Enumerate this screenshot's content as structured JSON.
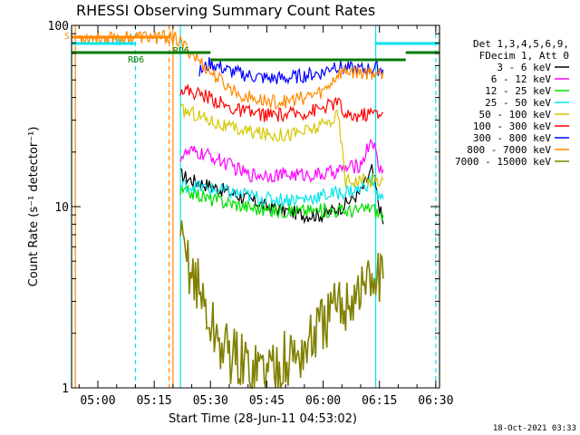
{
  "chart_data": {
    "type": "line",
    "title": "RHESSI Observing Summary Count Rates",
    "xlabel": "Start Time (28-Jun-11 04:53:02)",
    "ylabel": "Count Rate (s⁻¹ detector⁻¹)",
    "yscale": "log",
    "ylim": [
      1,
      100
    ],
    "xlim": [
      "04:53",
      "06:31"
    ],
    "x_ticks": [
      "05:00",
      "05:15",
      "05:30",
      "05:45",
      "06:00",
      "06:15",
      "06:30"
    ],
    "y_ticks": [
      "1",
      "10",
      "100"
    ],
    "legend_header": [
      "Det 1,3,4,5,6,9,",
      "FDecim 1, Att 0"
    ],
    "legend_position": "top-right",
    "date_stamp": "18-Oct-2021 03:33",
    "annotations": [
      {
        "label": "S",
        "color": "#ff8800"
      },
      {
        "label": "N",
        "color": "#00e5ee"
      },
      {
        "label": "RD6",
        "color": "#007a00"
      },
      {
        "label": "RD6",
        "color": "#007a00"
      }
    ],
    "series": [
      {
        "name": "3 - 6 keV",
        "color": "#000000",
        "points": [
          [
            "05:22",
            15
          ],
          [
            "05:25",
            14
          ],
          [
            "05:30",
            13
          ],
          [
            "05:35",
            12
          ],
          [
            "05:40",
            11
          ],
          [
            "05:45",
            10
          ],
          [
            "05:50",
            9.5
          ],
          [
            "05:55",
            9
          ],
          [
            "06:00",
            9
          ],
          [
            "06:05",
            10
          ],
          [
            "06:10",
            12
          ],
          [
            "06:13",
            16
          ],
          [
            "06:15",
            10
          ],
          [
            "06:16",
            8
          ]
        ]
      },
      {
        "name": "6 - 12 keV",
        "color": "#ff00ff",
        "points": [
          [
            "05:22",
            19
          ],
          [
            "05:25",
            20
          ],
          [
            "05:30",
            19
          ],
          [
            "05:35",
            17
          ],
          [
            "05:40",
            15
          ],
          [
            "05:45",
            15
          ],
          [
            "05:50",
            15
          ],
          [
            "05:55",
            15
          ],
          [
            "06:00",
            15
          ],
          [
            "06:05",
            16
          ],
          [
            "06:10",
            17
          ],
          [
            "06:13",
            24
          ],
          [
            "06:15",
            16
          ],
          [
            "06:16",
            16
          ]
        ]
      },
      {
        "name": "12 - 25 keV",
        "color": "#00dd00",
        "points": [
          [
            "05:22",
            12
          ],
          [
            "05:25",
            12
          ],
          [
            "05:30",
            11
          ],
          [
            "05:35",
            10.5
          ],
          [
            "05:40",
            10
          ],
          [
            "05:45",
            9.5
          ],
          [
            "05:50",
            9.5
          ],
          [
            "05:55",
            9.5
          ],
          [
            "06:00",
            9.5
          ],
          [
            "06:05",
            9.5
          ],
          [
            "06:10",
            9.5
          ],
          [
            "06:13",
            10
          ],
          [
            "06:15",
            9
          ],
          [
            "06:16",
            9
          ]
        ]
      },
      {
        "name": "25 - 50 keV",
        "color": "#00e5ee",
        "points": [
          [
            "05:22",
            13
          ],
          [
            "05:25",
            13
          ],
          [
            "05:30",
            12.5
          ],
          [
            "05:35",
            12
          ],
          [
            "05:40",
            11.5
          ],
          [
            "05:45",
            11
          ],
          [
            "05:50",
            11
          ],
          [
            "05:55",
            11
          ],
          [
            "06:00",
            11.5
          ],
          [
            "06:05",
            12
          ],
          [
            "06:10",
            12.5
          ],
          [
            "06:13",
            14
          ],
          [
            "06:15",
            11
          ],
          [
            "06:16",
            11
          ]
        ]
      },
      {
        "name": "50 - 100 keV",
        "color": "#d4c800",
        "points": [
          [
            "05:22",
            34
          ],
          [
            "05:25",
            33
          ],
          [
            "05:30",
            30
          ],
          [
            "05:35",
            27
          ],
          [
            "05:40",
            26
          ],
          [
            "05:45",
            25
          ],
          [
            "05:50",
            25
          ],
          [
            "05:55",
            26
          ],
          [
            "06:00",
            28
          ],
          [
            "06:04",
            32
          ],
          [
            "06:06",
            14
          ],
          [
            "06:10",
            14
          ],
          [
            "06:16",
            14
          ]
        ]
      },
      {
        "name": "100 - 300 keV",
        "color": "#ff0000",
        "points": [
          [
            "05:22",
            45
          ],
          [
            "05:25",
            43
          ],
          [
            "05:30",
            40
          ],
          [
            "05:35",
            35
          ],
          [
            "05:40",
            33
          ],
          [
            "05:45",
            32
          ],
          [
            "05:50",
            32
          ],
          [
            "05:55",
            33
          ],
          [
            "06:00",
            35
          ],
          [
            "06:04",
            38
          ],
          [
            "06:06",
            31
          ],
          [
            "06:10",
            32
          ],
          [
            "06:14",
            33
          ],
          [
            "06:16",
            33
          ]
        ]
      },
      {
        "name": "300 - 800 keV",
        "color": "#0000ff",
        "points": [
          [
            "05:27",
            55
          ],
          [
            "05:30",
            62
          ],
          [
            "05:35",
            56
          ],
          [
            "05:40",
            53
          ],
          [
            "05:45",
            51
          ],
          [
            "05:50",
            51
          ],
          [
            "05:55",
            53
          ],
          [
            "06:00",
            55
          ],
          [
            "06:03",
            61
          ],
          [
            "06:05",
            58
          ],
          [
            "06:10",
            57
          ],
          [
            "06:14",
            58
          ],
          [
            "06:16",
            57
          ]
        ]
      },
      {
        "name": "800 - 7000 keV",
        "color": "#ff8800",
        "points": [
          [
            "04:54",
            86
          ],
          [
            "05:18",
            86
          ],
          [
            "05:20",
            86
          ],
          [
            "05:22",
            80
          ],
          [
            "05:25",
            70
          ],
          [
            "05:30",
            55
          ],
          [
            "05:35",
            45
          ],
          [
            "05:40",
            40
          ],
          [
            "05:45",
            38
          ],
          [
            "05:50",
            38
          ],
          [
            "05:55",
            40
          ],
          [
            "06:00",
            43
          ],
          [
            "06:04",
            54
          ],
          [
            "06:06",
            56
          ],
          [
            "06:10",
            55
          ],
          [
            "06:16",
            55
          ]
        ]
      },
      {
        "name": "7000 - 15000 keV",
        "color": "#808000",
        "points": [
          [
            "05:22",
            6
          ],
          [
            "05:24",
            5
          ],
          [
            "05:26",
            4
          ],
          [
            "05:28",
            3
          ],
          [
            "05:30",
            2.2
          ],
          [
            "05:33",
            1.7
          ],
          [
            "05:36",
            1.5
          ],
          [
            "05:40",
            1.3
          ],
          [
            "05:45",
            1.3
          ],
          [
            "05:50",
            1.4
          ],
          [
            "05:55",
            1.6
          ],
          [
            "05:58",
            2
          ],
          [
            "06:02",
            2.5
          ],
          [
            "06:06",
            3
          ],
          [
            "06:10",
            3.5
          ],
          [
            "06:14",
            4
          ],
          [
            "06:16",
            4
          ]
        ]
      }
    ]
  }
}
